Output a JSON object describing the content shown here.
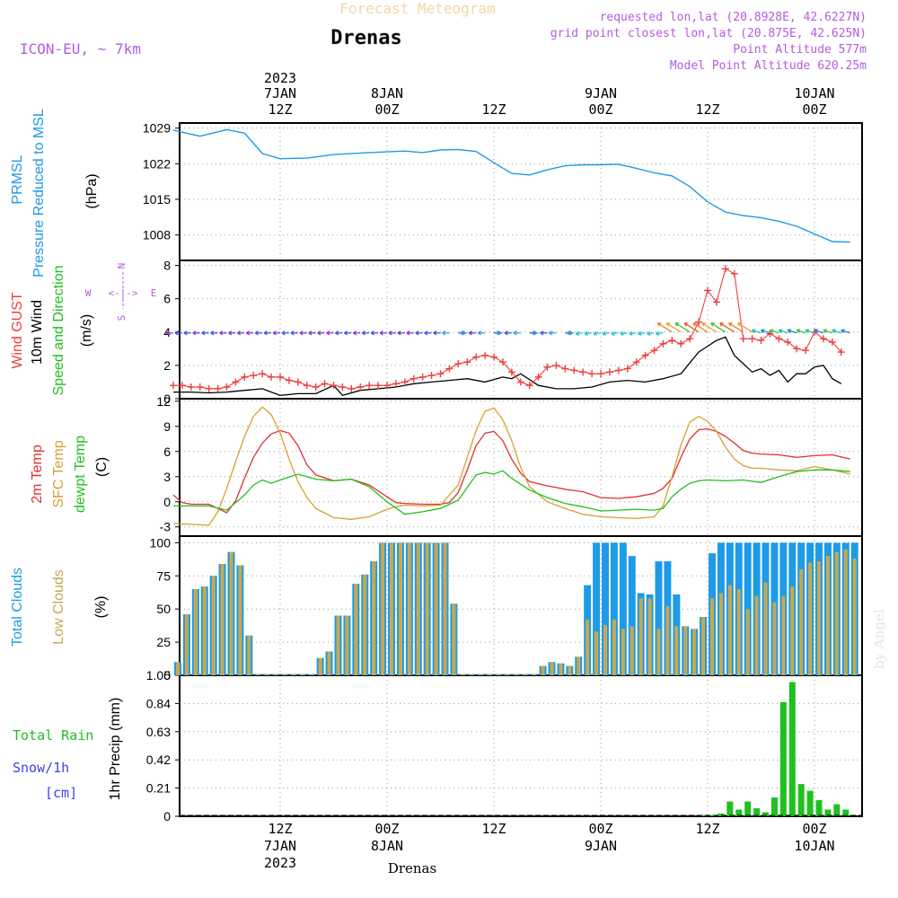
{
  "header": {
    "product": "Forecast Meteogram",
    "location": "Drenas",
    "model": "ICON-EU, ~ 7km",
    "requested": "requested lon,lat (20.8928E, 42.6227N)",
    "grid_point": "grid point closest lon,lat (20.875E, 42.625N)",
    "point_altitude": "Point Altitude 577m",
    "model_altitude": "Model Point Altitude 620.25m"
  },
  "footer": {
    "location": "Drenas",
    "watermark": "by Angel"
  },
  "time_axis": {
    "top_labels": [
      {
        "h": 12,
        "lines": [
          "2023",
          "7JAN",
          "12Z"
        ]
      },
      {
        "h": 24,
        "lines": [
          "8JAN",
          "00Z"
        ]
      },
      {
        "h": 36,
        "lines": [
          "12Z"
        ]
      },
      {
        "h": 48,
        "lines": [
          "9JAN",
          "00Z"
        ]
      },
      {
        "h": 60,
        "lines": [
          "12Z"
        ]
      },
      {
        "h": 72,
        "lines": [
          "10JAN",
          "00Z"
        ]
      }
    ],
    "bottom_labels": [
      {
        "h": 12,
        "lines": [
          "12Z",
          "7JAN",
          "2023"
        ]
      },
      {
        "h": 24,
        "lines": [
          "00Z",
          "8JAN"
        ]
      },
      {
        "h": 36,
        "lines": [
          "12Z"
        ]
      },
      {
        "h": 48,
        "lines": [
          "00Z",
          "9JAN"
        ]
      },
      {
        "h": 60,
        "lines": [
          "12Z"
        ]
      },
      {
        "h": 72,
        "lines": [
          "00Z",
          "10JAN"
        ]
      }
    ]
  },
  "colors": {
    "pressure": "#1e9be6",
    "gust": "#ee3f3f",
    "wind": "#000000",
    "dir_label": "#20c020",
    "temp2m": "#e03030",
    "sfc": "#d8a030",
    "dewpt": "#20c020",
    "total_clouds": "#1e9be6",
    "low_clouds": "#c8a850",
    "precip": "#20c020",
    "snow": "#4040ee",
    "compass": "#b65be0",
    "title": "#f0d8a8"
  },
  "chart_data": [
    {
      "type": "line",
      "panel": "pressure",
      "ylabel_lines": [
        "PRMSL",
        "Pressure Reduced to MSL",
        "(hPa)"
      ],
      "ylim": [
        1003,
        1030
      ],
      "yticks": [
        1008,
        1015,
        1022,
        1029
      ],
      "grid": true,
      "series": [
        {
          "name": "PRMSL",
          "x": [
            0,
            3,
            6,
            8,
            10,
            12,
            15,
            18,
            22,
            26,
            28,
            30,
            32,
            34,
            36,
            38,
            40,
            42,
            44,
            46,
            48,
            50,
            52,
            54,
            56,
            58,
            60,
            62,
            64,
            66,
            68,
            70,
            72,
            74,
            76
          ],
          "values": [
            1028.6,
            1027.4,
            1028.7,
            1028.0,
            1024.0,
            1023.0,
            1023.1,
            1023.8,
            1024.2,
            1024.5,
            1024.2,
            1024.7,
            1024.8,
            1024.4,
            1022.2,
            1020.1,
            1019.8,
            1020.8,
            1021.6,
            1021.8,
            1021.8,
            1021.9,
            1021.1,
            1020.2,
            1019.6,
            1017.5,
            1014.5,
            1012.5,
            1011.8,
            1011.4,
            1010.7,
            1009.7,
            1008.2,
            1006.7,
            1006.6
          ]
        }
      ]
    },
    {
      "type": "line",
      "panel": "wind",
      "ylabel_lines": [
        "Wind GUST",
        "10m Wind",
        "Speed and Direction",
        "(m/s)"
      ],
      "ylim": [
        0,
        8.3
      ],
      "yticks": [
        0,
        2,
        4,
        6,
        8
      ],
      "grid": true,
      "compass": {
        "n": "N",
        "s": "S",
        "w": "W",
        "e": "E"
      },
      "series": [
        {
          "name": "Wind GUST",
          "x": [
            0,
            1,
            2,
            3,
            4,
            5,
            6,
            7,
            8,
            9,
            10,
            11,
            12,
            13,
            14,
            15,
            16,
            17,
            18,
            19,
            20,
            21,
            22,
            23,
            24,
            25,
            26,
            27,
            28,
            29,
            30,
            31,
            32,
            33,
            34,
            35,
            36,
            37,
            38,
            39,
            40,
            41,
            42,
            43,
            44,
            45,
            46,
            47,
            48,
            49,
            50,
            51,
            52,
            53,
            54,
            55,
            56,
            57,
            58,
            59,
            60,
            61,
            62,
            63,
            64,
            65,
            66,
            67,
            68,
            69,
            70,
            71,
            72,
            73,
            74,
            75
          ],
          "values": [
            0.8,
            0.8,
            0.7,
            0.7,
            0.6,
            0.6,
            0.7,
            1.0,
            1.3,
            1.4,
            1.5,
            1.3,
            1.3,
            1.1,
            1.0,
            0.8,
            0.7,
            0.9,
            0.8,
            0.7,
            0.6,
            0.7,
            0.8,
            0.8,
            0.8,
            0.9,
            1.0,
            1.2,
            1.3,
            1.4,
            1.5,
            1.8,
            2.1,
            2.2,
            2.5,
            2.6,
            2.5,
            2.2,
            1.6,
            1.0,
            0.8,
            1.3,
            1.9,
            2.0,
            1.8,
            1.7,
            1.6,
            1.5,
            1.5,
            1.6,
            1.7,
            1.8,
            2.2,
            2.6,
            2.9,
            3.3,
            3.5,
            3.3,
            3.6,
            4.6,
            6.5,
            5.8,
            7.8,
            7.5,
            3.6,
            3.6,
            3.5,
            3.9,
            3.6,
            3.4,
            3.0,
            2.9,
            4.0,
            3.6,
            3.4,
            2.8
          ]
        },
        {
          "name": "10m Wind",
          "x": [
            0,
            2,
            4,
            6,
            8,
            10,
            12,
            14,
            16,
            18,
            19,
            21,
            23,
            25,
            27,
            29,
            31,
            33,
            35,
            37,
            38,
            39,
            41,
            43,
            45,
            47,
            49,
            51,
            53,
            55,
            57,
            59,
            61,
            62,
            63,
            64,
            65,
            66,
            67,
            68,
            69,
            70,
            71,
            72,
            73,
            74,
            75
          ],
          "values": [
            0.4,
            0.4,
            0.35,
            0.4,
            0.5,
            0.6,
            0.2,
            0.3,
            0.3,
            0.8,
            0.2,
            0.5,
            0.6,
            0.7,
            0.9,
            1.0,
            1.1,
            1.2,
            1.0,
            1.3,
            1.2,
            1.5,
            0.8,
            0.6,
            0.6,
            0.7,
            1.0,
            1.1,
            1.0,
            1.2,
            1.5,
            2.8,
            3.5,
            3.7,
            2.6,
            2.1,
            1.6,
            1.8,
            1.4,
            1.7,
            1.0,
            1.5,
            1.5,
            1.9,
            2.0,
            1.2,
            0.9
          ]
        }
      ]
    },
    {
      "type": "line",
      "panel": "temperature",
      "ylabel_lines": [
        "2m Temp",
        "SFC Temp",
        "dewpt Temp",
        "(C)"
      ],
      "ylim": [
        -4.1,
        12.3
      ],
      "yticks": [
        -3,
        0,
        3,
        6,
        9,
        12
      ],
      "grid": true,
      "series": [
        {
          "name": "2m Temp",
          "x": [
            0,
            1,
            2,
            4,
            6,
            7,
            8,
            9,
            10,
            11,
            12,
            13,
            14,
            15,
            16,
            18,
            20,
            22,
            24,
            25,
            26,
            28,
            30,
            31,
            32,
            33,
            34,
            35,
            36,
            37,
            38,
            39,
            40,
            42,
            44,
            46,
            48,
            50,
            52,
            54,
            55,
            56,
            57,
            58,
            59,
            60,
            61,
            62,
            63,
            64,
            65,
            66,
            68,
            70,
            72,
            74,
            76
          ],
          "values": [
            0.8,
            -0.1,
            -0.3,
            -0.3,
            -1.3,
            0.1,
            2.8,
            5.3,
            7.0,
            8.1,
            8.5,
            8.2,
            6.7,
            4.4,
            3.2,
            2.5,
            2.7,
            2.0,
            0.6,
            -0.1,
            -0.2,
            -0.3,
            -0.3,
            -0.1,
            1.1,
            3.8,
            6.7,
            8.2,
            8.4,
            7.3,
            5.1,
            3.4,
            2.4,
            1.9,
            1.5,
            1.2,
            0.5,
            0.4,
            0.6,
            1.0,
            1.6,
            2.8,
            5.3,
            7.5,
            8.6,
            8.7,
            8.4,
            7.8,
            7.0,
            6.1,
            5.8,
            5.7,
            5.6,
            5.3,
            5.5,
            5.6,
            5.1
          ]
        },
        {
          "name": "SFC Temp",
          "x": [
            0,
            2,
            4,
            5,
            6,
            7,
            8,
            9,
            10,
            11,
            12,
            13,
            14,
            15,
            16,
            18,
            20,
            22,
            24,
            25,
            26,
            28,
            30,
            32,
            33,
            34,
            35,
            36,
            37,
            38,
            39,
            40,
            42,
            44,
            46,
            48,
            50,
            52,
            54,
            55,
            56,
            57,
            58,
            59,
            60,
            61,
            62,
            63,
            64,
            65,
            66,
            68,
            70,
            72,
            74,
            76
          ],
          "values": [
            -2.6,
            -2.7,
            -2.8,
            -1.2,
            1.6,
            4.8,
            7.8,
            10.2,
            11.3,
            10.4,
            8.2,
            5.1,
            2.4,
            0.5,
            -0.8,
            -1.9,
            -2.1,
            -1.8,
            -0.9,
            -0.6,
            -0.4,
            -0.5,
            -0.4,
            2.0,
            5.3,
            8.5,
            10.8,
            11.2,
            9.8,
            7.3,
            4.1,
            1.8,
            0.0,
            -0.8,
            -1.5,
            -1.8,
            -1.9,
            -2.0,
            -1.8,
            -0.5,
            3.0,
            6.8,
            9.5,
            10.2,
            9.6,
            8.4,
            6.5,
            5.1,
            4.3,
            4.0,
            4.0,
            3.8,
            3.7,
            4.2,
            3.8,
            3.3
          ]
        },
        {
          "name": "dewpt Temp",
          "x": [
            0,
            2,
            4,
            6,
            8,
            9,
            10,
            11,
            12,
            14,
            16,
            18,
            20,
            22,
            24,
            26,
            28,
            30,
            32,
            33,
            34,
            35,
            36,
            37,
            38,
            40,
            42,
            44,
            46,
            48,
            50,
            52,
            54,
            55,
            56,
            57,
            58,
            59,
            60,
            62,
            64,
            66,
            68,
            70,
            72,
            74,
            76
          ],
          "values": [
            -0.5,
            -0.5,
            -0.5,
            -1.0,
            0.8,
            2.0,
            2.6,
            2.2,
            2.6,
            3.3,
            2.7,
            2.5,
            2.7,
            1.8,
            0.0,
            -1.5,
            -1.2,
            -0.8,
            0.2,
            1.7,
            3.2,
            3.5,
            3.3,
            3.7,
            2.8,
            1.4,
            0.5,
            -0.2,
            -0.6,
            -1.1,
            -1.0,
            -0.9,
            -1.0,
            -0.8,
            0.6,
            1.5,
            2.2,
            2.5,
            2.6,
            2.5,
            2.6,
            2.3,
            3.0,
            3.6,
            3.8,
            3.8,
            3.6
          ]
        }
      ]
    },
    {
      "type": "bar",
      "panel": "clouds",
      "ylabel_lines": [
        "Total Clouds",
        "Low Clouds",
        "(%)"
      ],
      "ylim": [
        0,
        105
      ],
      "yticks": [
        0,
        25,
        50,
        75,
        100
      ],
      "grid": true,
      "x": [
        0,
        1,
        2,
        3,
        4,
        5,
        6,
        7,
        8,
        9,
        10,
        11,
        12,
        13,
        14,
        15,
        16,
        17,
        18,
        19,
        20,
        21,
        22,
        23,
        24,
        25,
        26,
        27,
        28,
        29,
        30,
        31,
        32,
        33,
        34,
        35,
        36,
        37,
        38,
        39,
        40,
        41,
        42,
        43,
        44,
        45,
        46,
        47,
        48,
        49,
        50,
        51,
        52,
        53,
        54,
        55,
        56,
        57,
        58,
        59,
        60,
        61,
        62,
        63,
        64,
        65,
        66,
        67,
        68,
        69,
        70,
        71,
        72,
        73,
        74,
        75,
        76
      ],
      "series": [
        {
          "name": "Total Clouds",
          "values": [
            10,
            46,
            65,
            67,
            75,
            84,
            93,
            83,
            30,
            1,
            1,
            1,
            1,
            1,
            1,
            1,
            13,
            18,
            45,
            45,
            69,
            76,
            86,
            100,
            100,
            100,
            100,
            100,
            100,
            100,
            100,
            54,
            1,
            1,
            1,
            1,
            1,
            1,
            1,
            1,
            1,
            7,
            10,
            9,
            7,
            14,
            68,
            100,
            100,
            100,
            100,
            90,
            62,
            61,
            86,
            86,
            61,
            37,
            35,
            44,
            92,
            100,
            100,
            100,
            100,
            100,
            100,
            100,
            100,
            100,
            100,
            100,
            100,
            100,
            100,
            100,
            100
          ]
        },
        {
          "name": "Low Clouds",
          "values": [
            10,
            46,
            65,
            67,
            75,
            84,
            93,
            83,
            30,
            1,
            1,
            1,
            1,
            1,
            1,
            1,
            13,
            18,
            45,
            45,
            69,
            76,
            86,
            100,
            100,
            100,
            100,
            100,
            100,
            100,
            100,
            54,
            1,
            1,
            1,
            1,
            1,
            1,
            1,
            1,
            1,
            7,
            10,
            9,
            7,
            14,
            42,
            33,
            38,
            42,
            35,
            37,
            58,
            58,
            35,
            52,
            37,
            37,
            35,
            44,
            58,
            62,
            68,
            65,
            50,
            60,
            70,
            55,
            60,
            67,
            80,
            85,
            86,
            90,
            93,
            95,
            88
          ]
        }
      ]
    },
    {
      "type": "bar",
      "panel": "precipitation",
      "ylabel_lines": [
        "Total Rain",
        "Snow/1h",
        "[cm]",
        "1hr Precip (mm)"
      ],
      "ylim": [
        0,
        1.05
      ],
      "yticks": [
        "0",
        "0.21",
        "0.42",
        "0.63",
        "0.84",
        "1.05"
      ],
      "grid": true,
      "x": [
        59,
        60,
        61,
        62,
        63,
        64,
        65,
        66,
        67,
        68,
        69,
        70,
        71,
        72,
        73,
        74,
        75,
        76
      ],
      "series": [
        {
          "name": "1hr Precip",
          "values": [
            0.01,
            0.01,
            0.02,
            0.11,
            0.05,
            0.11,
            0.06,
            0.03,
            0.14,
            0.85,
            1.0,
            0.24,
            0.19,
            0.12,
            0.05,
            0.09,
            0.05,
            0.0
          ]
        }
      ]
    }
  ]
}
